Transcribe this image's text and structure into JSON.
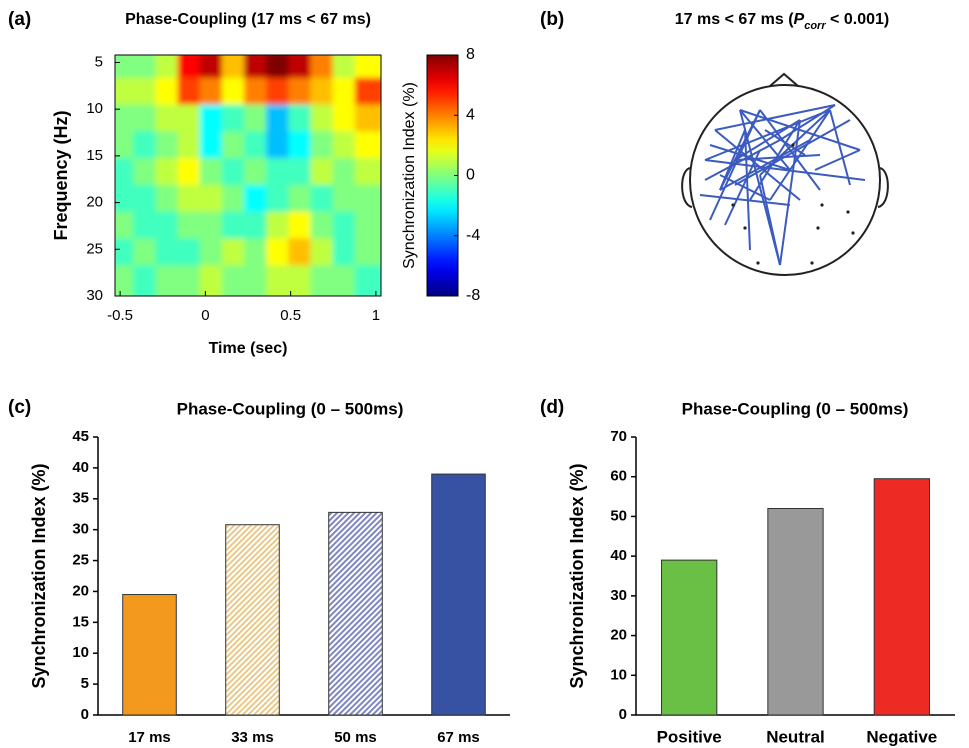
{
  "chart_data": [
    {
      "type": "heatmap",
      "label": "(a)",
      "title": "Phase-Coupling (17 ms < 67 ms)",
      "xlabel": "Time (sec)",
      "ylabel": "Frequency (Hz)",
      "x": [
        -0.465,
        -0.335,
        -0.205,
        -0.075,
        0.055,
        0.185,
        0.315,
        0.445,
        0.575,
        0.705,
        0.835,
        0.965
      ],
      "y": [
        5.63,
        8.5,
        11.37,
        14.23,
        17.1,
        19.97,
        22.83,
        25.7,
        28.57
      ],
      "z": [
        [
          0,
          0,
          1,
          6,
          7,
          3,
          7,
          8,
          7,
          4,
          1,
          2
        ],
        [
          1,
          1,
          2,
          5,
          4,
          2,
          4,
          5,
          4,
          3,
          2,
          5
        ],
        [
          0,
          0,
          1,
          1,
          -2,
          -1,
          0,
          -3,
          -1,
          1,
          2,
          3
        ],
        [
          0,
          -1,
          0,
          1,
          -2,
          0,
          -1,
          -3,
          -2,
          0,
          1,
          2
        ],
        [
          -1,
          0,
          1,
          2,
          0,
          -1,
          0,
          -1,
          -1,
          1,
          0,
          1
        ],
        [
          -1,
          -1,
          0,
          1,
          1,
          0,
          -2,
          -1,
          0,
          -1,
          0,
          0
        ],
        [
          0,
          -1,
          -1,
          0,
          0,
          -1,
          -1,
          1,
          2,
          0,
          -1,
          0
        ],
        [
          -1,
          0,
          -1,
          -1,
          0,
          1,
          0,
          2,
          3,
          1,
          -1,
          0
        ],
        [
          0,
          -1,
          0,
          0,
          1,
          0,
          0,
          1,
          1,
          0,
          0,
          -1
        ]
      ],
      "xlim": [
        -0.53,
        1.03
      ],
      "xticks": [
        -0.5,
        0,
        0.5,
        1
      ],
      "ylim": [
        4.2,
        30
      ],
      "yticks": [
        5,
        10,
        15,
        20,
        25,
        30
      ],
      "y_inverted": true,
      "colormap": "jet",
      "zlim": [
        -8,
        8
      ],
      "zticks": [
        8,
        4,
        0,
        -4,
        -8
      ],
      "zlabel": "Synchronization Index (%)"
    },
    {
      "type": "topomap",
      "label": "(b)",
      "title_parts": [
        "17 ms < 67 ms (",
        "P",
        "corr",
        " < 0.001)"
      ]
    },
    {
      "type": "bar",
      "label": "(c)",
      "title": "Phase-Coupling (0 – 500ms)",
      "ylabel": "Synchronization Index (%)",
      "categories": [
        "17 ms",
        "33 ms",
        "50 ms",
        "67 ms"
      ],
      "values": [
        19.5,
        30.8,
        32.8,
        39
      ],
      "colors": [
        "#f39a1e",
        "#e9c98a",
        "#7f86c2",
        "#3852a3"
      ],
      "hatch": [
        false,
        true,
        true,
        false
      ],
      "ylim": [
        0,
        45
      ],
      "yticks": [
        0,
        5,
        10,
        15,
        20,
        25,
        30,
        35,
        40,
        45
      ]
    },
    {
      "type": "bar",
      "label": "(d)",
      "title": "Phase-Coupling (0 – 500ms)",
      "ylabel": "Synchronization Index (%)",
      "categories": [
        "Positive",
        "Neutral",
        "Negative"
      ],
      "values": [
        39,
        52,
        59.5
      ],
      "colors": [
        "#6abf45",
        "#999999",
        "#ee2a24"
      ],
      "hatch": [
        false,
        false,
        false
      ],
      "ylim": [
        0,
        70
      ],
      "yticks": [
        0,
        10,
        20,
        30,
        40,
        50,
        60,
        70
      ]
    }
  ]
}
